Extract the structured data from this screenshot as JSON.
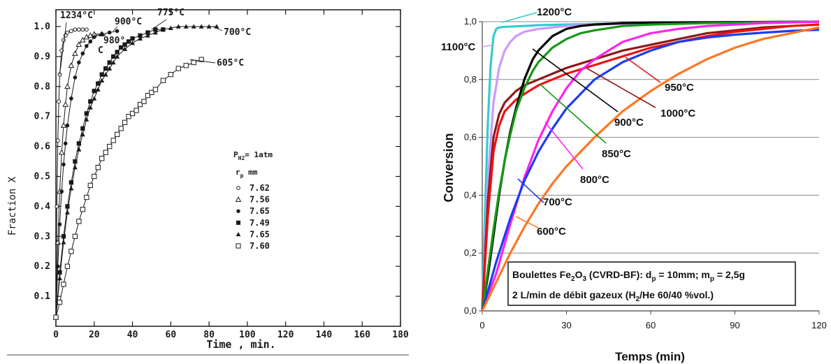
{
  "chart_data": [
    {
      "type": "scatter",
      "xlabel": "Time , min.",
      "ylabel": "Fraction X",
      "xlim": [
        0,
        180
      ],
      "ylim": [
        0,
        1.0
      ],
      "x_ticks": [
        "0",
        "20",
        "40",
        "60",
        "80",
        "100",
        "120",
        "140",
        "160",
        "180"
      ],
      "y_ticks": [
        "0.1",
        "0.2",
        "0.3",
        "0.4",
        "0.5",
        "0.6",
        "0.7",
        "0.8",
        "0.9",
        "1.0"
      ],
      "grid": false,
      "legend": {
        "title": "P",
        "title_sub": "H2",
        "title_rest": "= 1atm",
        "header": "r",
        "header_sub": "p",
        "header_rest": " mm",
        "entries": [
          {
            "marker": "small-circle",
            "label": "7.62"
          },
          {
            "marker": "open-triangle",
            "label": "7.56"
          },
          {
            "marker": "filled-circle",
            "label": "7.65"
          },
          {
            "marker": "filled-square",
            "label": "7.49"
          },
          {
            "marker": "filled-triangle",
            "label": "7.65"
          },
          {
            "marker": "open-square",
            "label": "7.60"
          }
        ]
      },
      "series": [
        {
          "name": "1234°C",
          "marker": "small-circle",
          "x": [
            0,
            0.5,
            1,
            1.5,
            2,
            3,
            4,
            5,
            6,
            8,
            10,
            12,
            14,
            16
          ],
          "y": [
            0.03,
            0.4,
            0.62,
            0.75,
            0.84,
            0.92,
            0.955,
            0.97,
            0.98,
            0.985,
            0.99,
            0.99,
            0.99,
            0.99
          ]
        },
        {
          "name": "980°C",
          "marker": "open-triangle",
          "x": [
            0,
            1,
            2,
            3,
            4,
            5,
            6,
            8,
            10,
            12,
            14,
            16,
            18,
            20,
            24
          ],
          "y": [
            0.03,
            0.28,
            0.45,
            0.58,
            0.67,
            0.74,
            0.8,
            0.87,
            0.91,
            0.94,
            0.955,
            0.965,
            0.97,
            0.975,
            0.975
          ]
        },
        {
          "name": "900°C",
          "marker": "filled-circle",
          "x": [
            0,
            1,
            2,
            3,
            4,
            5,
            6,
            8,
            10,
            12,
            14,
            16,
            18,
            20,
            24,
            28,
            32
          ],
          "y": [
            0.03,
            0.2,
            0.34,
            0.45,
            0.54,
            0.61,
            0.67,
            0.76,
            0.83,
            0.88,
            0.91,
            0.935,
            0.95,
            0.965,
            0.975,
            0.98,
            0.985
          ]
        },
        {
          "name": "775°C",
          "marker": "filled-square",
          "x": [
            0,
            2,
            4,
            6,
            8,
            10,
            12,
            14,
            16,
            18,
            20,
            22,
            24,
            26,
            28,
            30,
            32,
            34,
            36,
            38,
            40,
            44,
            48,
            52,
            56
          ],
          "y": [
            0.03,
            0.18,
            0.3,
            0.4,
            0.48,
            0.55,
            0.61,
            0.66,
            0.71,
            0.75,
            0.785,
            0.81,
            0.84,
            0.86,
            0.88,
            0.9,
            0.915,
            0.93,
            0.94,
            0.95,
            0.96,
            0.97,
            0.98,
            0.99,
            0.99
          ]
        },
        {
          "name": "700°C",
          "marker": "filled-triangle",
          "x": [
            0,
            2,
            4,
            6,
            8,
            10,
            12,
            14,
            16,
            18,
            20,
            22,
            24,
            26,
            28,
            30,
            32,
            36,
            40,
            44,
            48,
            52,
            56,
            60,
            64,
            68,
            72,
            76,
            80,
            84
          ],
          "y": [
            0.03,
            0.16,
            0.28,
            0.38,
            0.46,
            0.53,
            0.59,
            0.64,
            0.69,
            0.73,
            0.76,
            0.79,
            0.82,
            0.84,
            0.86,
            0.88,
            0.9,
            0.925,
            0.945,
            0.96,
            0.97,
            0.98,
            0.99,
            0.995,
            1.0,
            1.0,
            1.0,
            1.0,
            1.0,
            1.0
          ]
        },
        {
          "name": "605°C",
          "marker": "open-square",
          "x": [
            0,
            2,
            4,
            6,
            8,
            10,
            12,
            14,
            16,
            18,
            20,
            22,
            24,
            26,
            28,
            30,
            32,
            34,
            36,
            38,
            40,
            42,
            44,
            46,
            48,
            50,
            52,
            56,
            60,
            64,
            68,
            72,
            76
          ],
          "y": [
            0.03,
            0.08,
            0.14,
            0.2,
            0.25,
            0.3,
            0.35,
            0.39,
            0.43,
            0.47,
            0.5,
            0.53,
            0.56,
            0.58,
            0.6,
            0.62,
            0.64,
            0.66,
            0.68,
            0.7,
            0.71,
            0.72,
            0.74,
            0.75,
            0.77,
            0.78,
            0.79,
            0.82,
            0.84,
            0.86,
            0.87,
            0.88,
            0.89
          ]
        }
      ]
    },
    {
      "type": "line",
      "xlabel": "Temps (min)",
      "ylabel": "Conversion",
      "xlim": [
        0,
        120
      ],
      "ylim": [
        0,
        1.0
      ],
      "x_ticks": [
        "0",
        "30",
        "60",
        "90",
        "120"
      ],
      "y_ticks": [
        "0,0",
        "0,2",
        "0,4",
        "0,6",
        "0,8",
        "1,0"
      ],
      "grid": true,
      "annotation": {
        "line1_a": "Boulettes Fe",
        "line1_sub1": "2",
        "line1_b": "O",
        "line1_sub2": "3",
        "line1_c": " (CVRD-BF): d",
        "line1_sub3": "p",
        "line1_d": " = 10mm; m",
        "line1_sub4": "p",
        "line1_e": " = 2,5g",
        "line2_a": "2 L/min de débit gazeux (H",
        "line2_sub": "2",
        "line2_b": "/He 60/40 %vol.)"
      },
      "series": [
        {
          "name": "1200°C",
          "color": "#33cccc",
          "x": [
            0,
            1,
            2,
            3,
            4,
            5,
            6,
            8,
            10,
            15,
            20,
            30,
            40,
            60,
            90,
            120
          ],
          "y": [
            0,
            0.35,
            0.65,
            0.85,
            0.95,
            0.975,
            0.98,
            0.982,
            0.983,
            0.985,
            0.988,
            0.99,
            0.992,
            0.995,
            0.998,
            1.0
          ]
        },
        {
          "name": "1100°C",
          "color": "#cc99ff",
          "x": [
            0,
            2,
            4,
            6,
            8,
            10,
            12,
            15,
            20,
            25,
            30,
            40,
            60,
            90,
            120
          ],
          "y": [
            0,
            0.45,
            0.72,
            0.84,
            0.9,
            0.93,
            0.95,
            0.965,
            0.975,
            0.98,
            0.985,
            0.99,
            0.995,
            0.998,
            1.0
          ]
        },
        {
          "name": "1000°C",
          "color": "#8b1a1a",
          "x": [
            0,
            2,
            4,
            6,
            8,
            10,
            12,
            15,
            20,
            25,
            30,
            40,
            50,
            60,
            70,
            80,
            90,
            100,
            110,
            120
          ],
          "y": [
            0,
            0.38,
            0.6,
            0.68,
            0.72,
            0.74,
            0.76,
            0.78,
            0.8,
            0.82,
            0.84,
            0.87,
            0.9,
            0.92,
            0.94,
            0.96,
            0.97,
            0.98,
            0.985,
            0.99
          ]
        },
        {
          "name": "950°C",
          "color": "#ee1111",
          "x": [
            0,
            2,
            4,
            6,
            8,
            10,
            12,
            15,
            20,
            25,
            30,
            40,
            50,
            60,
            70,
            80,
            90,
            100,
            110,
            120
          ],
          "y": [
            0,
            0.33,
            0.55,
            0.64,
            0.69,
            0.71,
            0.73,
            0.75,
            0.78,
            0.8,
            0.82,
            0.85,
            0.88,
            0.91,
            0.93,
            0.95,
            0.965,
            0.975,
            0.985,
            0.99
          ]
        },
        {
          "name": "900°C",
          "color": "#000000",
          "x": [
            0,
            2,
            4,
            6,
            8,
            10,
            12,
            15,
            18,
            20,
            25,
            30,
            35,
            40,
            50,
            60,
            80,
            100,
            120
          ],
          "y": [
            0,
            0.12,
            0.26,
            0.4,
            0.52,
            0.62,
            0.7,
            0.8,
            0.87,
            0.9,
            0.95,
            0.975,
            0.985,
            0.99,
            0.995,
            0.997,
            0.998,
            0.999,
            1.0
          ]
        },
        {
          "name": "850°C",
          "color": "#159a15",
          "x": [
            0,
            2,
            4,
            6,
            8,
            10,
            12,
            15,
            18,
            20,
            25,
            30,
            35,
            40,
            50,
            60,
            80,
            100,
            120
          ],
          "y": [
            0,
            0.14,
            0.28,
            0.41,
            0.52,
            0.61,
            0.69,
            0.77,
            0.83,
            0.86,
            0.91,
            0.94,
            0.96,
            0.97,
            0.985,
            0.99,
            0.995,
            0.998,
            1.0
          ]
        },
        {
          "name": "800°C",
          "color": "#ff22ee",
          "x": [
            0,
            5,
            10,
            15,
            20,
            25,
            30,
            35,
            40,
            45,
            50,
            55,
            60,
            70,
            80,
            90,
            100,
            120
          ],
          "y": [
            0,
            0.13,
            0.3,
            0.46,
            0.59,
            0.69,
            0.77,
            0.83,
            0.87,
            0.9,
            0.93,
            0.945,
            0.96,
            0.975,
            0.985,
            0.99,
            0.995,
            1.0
          ]
        },
        {
          "name": "700°C",
          "color": "#1a3df0",
          "x": [
            0,
            5,
            10,
            15,
            20,
            25,
            30,
            40,
            50,
            60,
            70,
            80,
            90,
            100,
            110,
            120
          ],
          "y": [
            0,
            0.17,
            0.32,
            0.45,
            0.55,
            0.63,
            0.7,
            0.8,
            0.86,
            0.9,
            0.93,
            0.945,
            0.955,
            0.962,
            0.968,
            0.972
          ]
        },
        {
          "name": "600°C",
          "color": "#ff7722",
          "x": [
            0,
            5,
            10,
            15,
            20,
            25,
            30,
            40,
            50,
            60,
            70,
            80,
            90,
            100,
            110,
            120
          ],
          "y": [
            0,
            0.1,
            0.2,
            0.29,
            0.37,
            0.44,
            0.5,
            0.6,
            0.69,
            0.76,
            0.82,
            0.87,
            0.91,
            0.94,
            0.96,
            0.98
          ]
        }
      ]
    }
  ]
}
